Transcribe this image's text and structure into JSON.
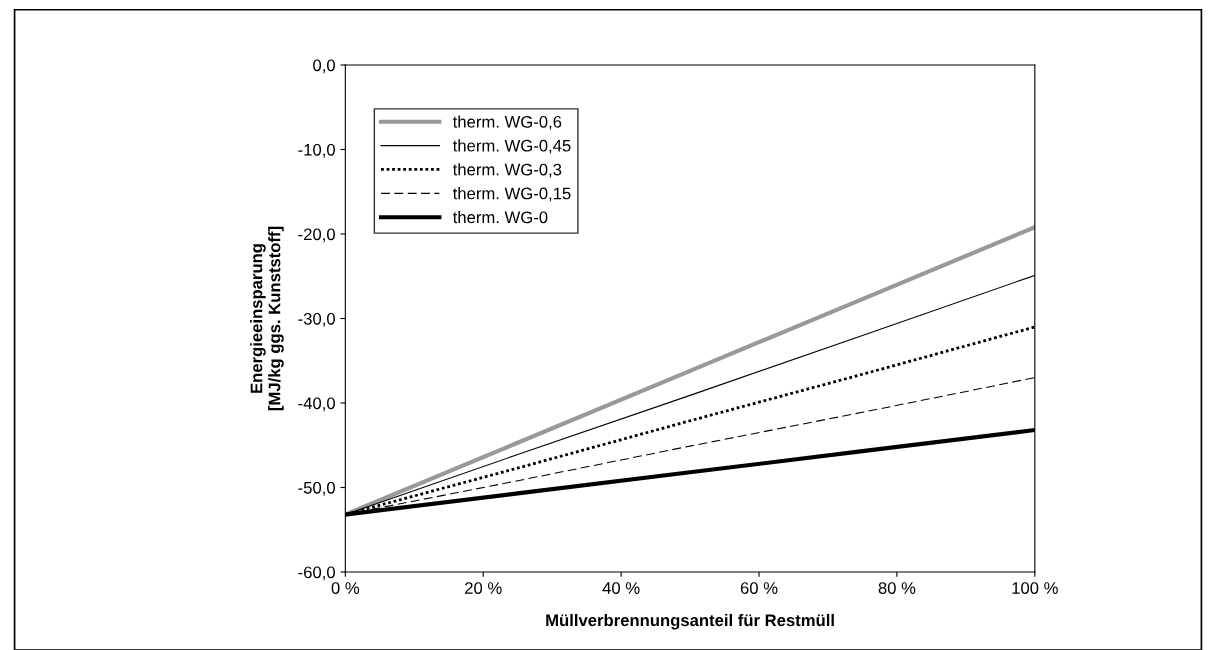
{
  "chart_data": {
    "type": "line",
    "xlabel": "Müllverbrennungsanteil für Restmüll",
    "ylabel": "Energieeinsparung\n[MJ/kg ggs. Kunststoff]",
    "x": [
      0,
      25,
      50,
      75,
      100
    ],
    "series": [
      {
        "name": "therm. WG-0,6",
        "color": "#999999",
        "line_style": "solid",
        "values": [
          -53.2,
          -44.7,
          -36.2,
          -27.7,
          -19.2
        ]
      },
      {
        "name": "therm. WG-0,45",
        "color": "#000000",
        "line_style": "solid",
        "values": [
          -53.2,
          -46.1,
          -39.1,
          -32.0,
          -24.9
        ]
      },
      {
        "name": "therm. WG-0,3",
        "color": "#000000",
        "line_style": "dotted",
        "values": [
          -53.2,
          -47.7,
          -42.1,
          -36.6,
          -31.0
        ]
      },
      {
        "name": "therm. WG-0,15",
        "color": "#000000",
        "line_style": "dashed",
        "values": [
          -53.2,
          -49.2,
          -45.1,
          -41.1,
          -37.0
        ]
      },
      {
        "name": "therm. WG-0",
        "color": "#000000",
        "line_style": "solid",
        "values": [
          -53.2,
          -50.7,
          -48.2,
          -45.7,
          -43.2
        ]
      }
    ],
    "xlim": [
      0,
      100
    ],
    "xticks": [
      {
        "value": 0,
        "label": "0 %"
      },
      {
        "value": 20,
        "label": "20 %"
      },
      {
        "value": 40,
        "label": "40 %"
      },
      {
        "value": 60,
        "label": "60 %"
      },
      {
        "value": 80,
        "label": "80 %"
      },
      {
        "value": 100,
        "label": "100 %"
      }
    ],
    "ylim": [
      -60,
      0
    ],
    "yticks": [
      {
        "value": -60,
        "label": "-60,0"
      },
      {
        "value": -50,
        "label": "-50,0"
      },
      {
        "value": -40,
        "label": "-40,0"
      },
      {
        "value": -30,
        "label": "-30,0"
      },
      {
        "value": -20,
        "label": "-20,0"
      },
      {
        "value": -10,
        "label": "-10,0"
      },
      {
        "value": 0,
        "label": "0,0"
      }
    ],
    "grid": false,
    "legend": "top left",
    "marker": "none"
  }
}
